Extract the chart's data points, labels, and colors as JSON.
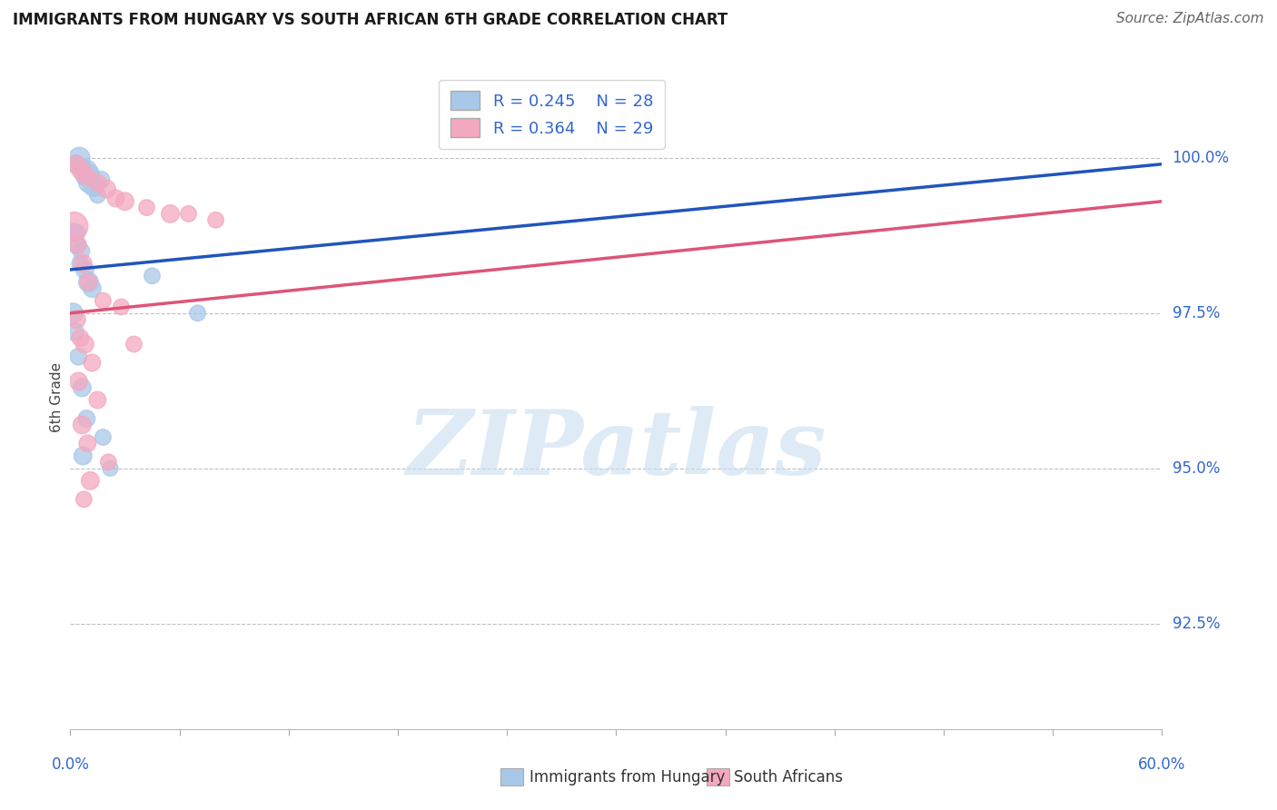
{
  "title": "IMMIGRANTS FROM HUNGARY VS SOUTH AFRICAN 6TH GRADE CORRELATION CHART",
  "source": "Source: ZipAtlas.com",
  "ylabel": "6th Grade",
  "ylabel_ticks": [
    "100.0%",
    "97.5%",
    "95.0%",
    "92.5%"
  ],
  "ylabel_values": [
    100.0,
    97.5,
    95.0,
    92.5
  ],
  "xmin": 0.0,
  "xmax": 60.0,
  "ymin": 90.8,
  "ymax": 101.5,
  "blue_R": "R = 0.245",
  "blue_N": "N = 28",
  "pink_R": "R = 0.364",
  "pink_N": "N = 29",
  "blue_color": "#a8c8e8",
  "pink_color": "#f4a8c0",
  "blue_line_color": "#2255bb",
  "pink_line_color": "#dd5577",
  "axis_label_color": "#3366cc",
  "watermark_color": "#c8dff0",
  "blue_points_x": [
    0.3,
    0.5,
    0.6,
    0.8,
    0.9,
    1.0,
    1.1,
    1.3,
    1.5,
    1.7,
    0.4,
    0.6,
    0.8,
    1.0,
    1.2,
    0.2,
    0.35,
    0.55,
    4.5,
    0.25,
    0.45,
    7.0,
    0.65,
    0.9,
    1.8,
    0.7,
    2.2,
    0.15
  ],
  "blue_points_y": [
    99.9,
    100.0,
    99.85,
    99.7,
    99.8,
    99.6,
    99.75,
    99.55,
    99.4,
    99.65,
    98.8,
    98.5,
    98.2,
    98.0,
    97.9,
    98.8,
    98.6,
    98.3,
    98.1,
    97.2,
    96.8,
    97.5,
    96.3,
    95.8,
    95.5,
    95.2,
    95.0,
    97.5
  ],
  "blue_point_sizes": [
    200,
    280,
    220,
    200,
    260,
    240,
    200,
    280,
    160,
    180,
    150,
    180,
    200,
    240,
    200,
    200,
    200,
    180,
    160,
    200,
    180,
    160,
    200,
    180,
    160,
    200,
    150,
    250
  ],
  "pink_points_x": [
    0.3,
    0.6,
    0.9,
    1.5,
    2.0,
    2.5,
    3.0,
    4.2,
    5.5,
    0.2,
    0.4,
    0.7,
    1.0,
    1.8,
    0.35,
    0.55,
    2.8,
    0.8,
    1.2,
    3.5,
    0.45,
    1.5,
    0.65,
    0.95,
    2.1,
    1.1,
    0.75,
    6.5,
    8.0
  ],
  "pink_points_y": [
    99.9,
    99.8,
    99.7,
    99.6,
    99.5,
    99.35,
    99.3,
    99.2,
    99.1,
    98.9,
    98.6,
    98.3,
    98.0,
    97.7,
    97.4,
    97.1,
    97.6,
    97.0,
    96.7,
    97.0,
    96.4,
    96.1,
    95.7,
    95.4,
    95.1,
    94.8,
    94.5,
    99.1,
    99.0
  ],
  "pink_point_sizes": [
    200,
    220,
    200,
    180,
    200,
    180,
    200,
    160,
    200,
    500,
    200,
    200,
    180,
    160,
    200,
    180,
    160,
    200,
    180,
    160,
    200,
    180,
    200,
    180,
    160,
    200,
    160,
    160,
    160
  ],
  "blue_trend_x": [
    0.0,
    60.0
  ],
  "blue_trend_y": [
    98.2,
    99.9
  ],
  "pink_trend_x": [
    0.0,
    60.0
  ],
  "pink_trend_y": [
    97.5,
    99.3
  ]
}
